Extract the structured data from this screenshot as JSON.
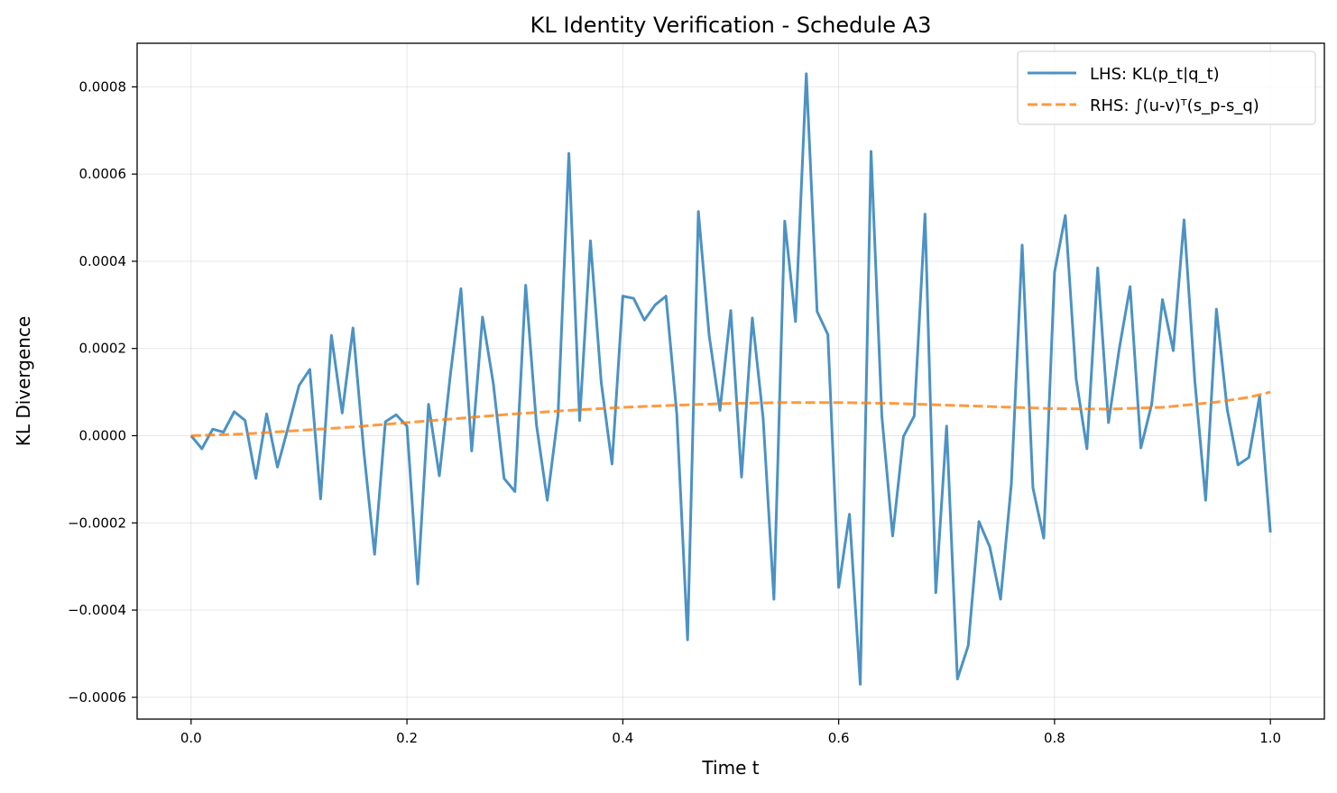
{
  "chart_data": {
    "type": "line",
    "title": "KL Identity Verification - Schedule A3",
    "xlabel": "Time t",
    "ylabel": "KL Divergence",
    "xlim": [
      -0.05,
      1.05
    ],
    "ylim": [
      -0.00065,
      0.0009
    ],
    "xticks": [
      0.0,
      0.2,
      0.4,
      0.6,
      0.8,
      1.0
    ],
    "xtick_labels": [
      "0.0",
      "0.2",
      "0.4",
      "0.6",
      "0.8",
      "1.0"
    ],
    "yticks": [
      -0.0006,
      -0.0004,
      -0.0002,
      0.0,
      0.0002,
      0.0004,
      0.0006,
      0.0008
    ],
    "ytick_labels": [
      "−0.0006",
      "−0.0004",
      "−0.0002",
      "0.0000",
      "0.0002",
      "0.0004",
      "0.0006",
      "0.0008"
    ],
    "grid": true,
    "legend_position": "top-right",
    "series": [
      {
        "name": "LHS: KL(p_t|q_t)",
        "color": "#1f77b4",
        "style": "solid",
        "x": [
          0.0,
          0.01,
          0.02,
          0.03,
          0.04,
          0.05,
          0.06,
          0.07,
          0.08,
          0.09,
          0.1,
          0.11,
          0.12,
          0.13,
          0.14,
          0.15,
          0.16,
          0.17,
          0.18,
          0.19,
          0.2,
          0.21,
          0.22,
          0.23,
          0.24,
          0.25,
          0.26,
          0.27,
          0.28,
          0.29,
          0.3,
          0.31,
          0.32,
          0.33,
          0.34,
          0.35,
          0.36,
          0.37,
          0.38,
          0.39,
          0.4,
          0.41,
          0.42,
          0.43,
          0.44,
          0.45,
          0.46,
          0.47,
          0.48,
          0.49,
          0.5,
          0.51,
          0.52,
          0.53,
          0.54,
          0.55,
          0.56,
          0.57,
          0.58,
          0.59,
          0.6,
          0.61,
          0.62,
          0.63,
          0.64,
          0.65,
          0.66,
          0.67,
          0.68,
          0.69,
          0.7,
          0.71,
          0.72,
          0.73,
          0.74,
          0.75,
          0.76,
          0.77,
          0.78,
          0.79,
          0.8,
          0.81,
          0.82,
          0.83,
          0.84,
          0.85,
          0.86,
          0.87,
          0.88,
          0.89,
          0.9,
          0.91,
          0.92,
          0.93,
          0.94,
          0.95,
          0.96,
          0.97,
          0.98,
          0.99,
          1.0
        ],
        "y": [
          0.0,
          -3e-05,
          1.5e-05,
          8e-06,
          5.5e-05,
          3.5e-05,
          -9.8e-05,
          5e-05,
          -7.2e-05,
          2e-05,
          0.000115,
          0.000152,
          -0.000145,
          0.00023,
          5.2e-05,
          0.000247,
          -3.5e-05,
          -0.000272,
          3.2e-05,
          4.8e-05,
          2.2e-05,
          -0.00034,
          7.2e-05,
          -9.2e-05,
          0.000135,
          0.000337,
          -3.5e-05,
          0.000272,
          0.00012,
          -9.8e-05,
          -0.000128,
          0.000345,
          2.5e-05,
          -0.000148,
          4.8e-05,
          0.000647,
          3.5e-05,
          0.000447,
          0.000122,
          -6.5e-05,
          0.00032,
          0.000315,
          0.000265,
          0.0003,
          0.00032,
          5e-05,
          -0.000468,
          0.000514,
          0.00023,
          5.8e-05,
          0.000287,
          -9.5e-05,
          0.00027,
          4e-05,
          -0.000375,
          0.000492,
          0.000262,
          0.00083,
          0.000285,
          0.000232,
          -0.000348,
          -0.00018,
          -0.00057,
          0.000652,
          4.5e-05,
          -0.00023,
          -2e-06,
          4.5e-05,
          0.000508,
          -0.00036,
          2.2e-05,
          -0.000558,
          -0.000482,
          -0.000197,
          -0.000255,
          -0.000375,
          -0.00011,
          0.000437,
          -0.00012,
          -0.000235,
          0.000375,
          0.000505,
          0.00013,
          -3e-05,
          0.000385,
          3e-05,
          0.0002,
          0.000342,
          -2.8e-05,
          7.2e-05,
          0.000312,
          0.000195,
          0.000495,
          0.000125,
          -0.000148,
          0.00029,
          6e-05,
          -6.7e-05,
          -5e-05,
          9e-05,
          -0.000222
        ]
      },
      {
        "name": "RHS: ∫(u-v)ᵀ(s_p-s_q)",
        "color": "#ff7f0e",
        "style": "dashed",
        "x": [
          0.0,
          0.05,
          0.1,
          0.15,
          0.2,
          0.25,
          0.3,
          0.35,
          0.4,
          0.45,
          0.5,
          0.55,
          0.6,
          0.65,
          0.7,
          0.75,
          0.8,
          0.85,
          0.9,
          0.95,
          0.98,
          1.0
        ],
        "y": [
          0.0,
          4e-06,
          1.2e-05,
          2e-05,
          3e-05,
          4e-05,
          5e-05,
          5.8e-05,
          6.5e-05,
          7e-05,
          7.4e-05,
          7.6e-05,
          7.6e-05,
          7.4e-05,
          7e-05,
          6.6e-05,
          6.2e-05,
          6.1e-05,
          6.5e-05,
          7.7e-05,
          8.8e-05,
          0.0001
        ]
      }
    ]
  }
}
